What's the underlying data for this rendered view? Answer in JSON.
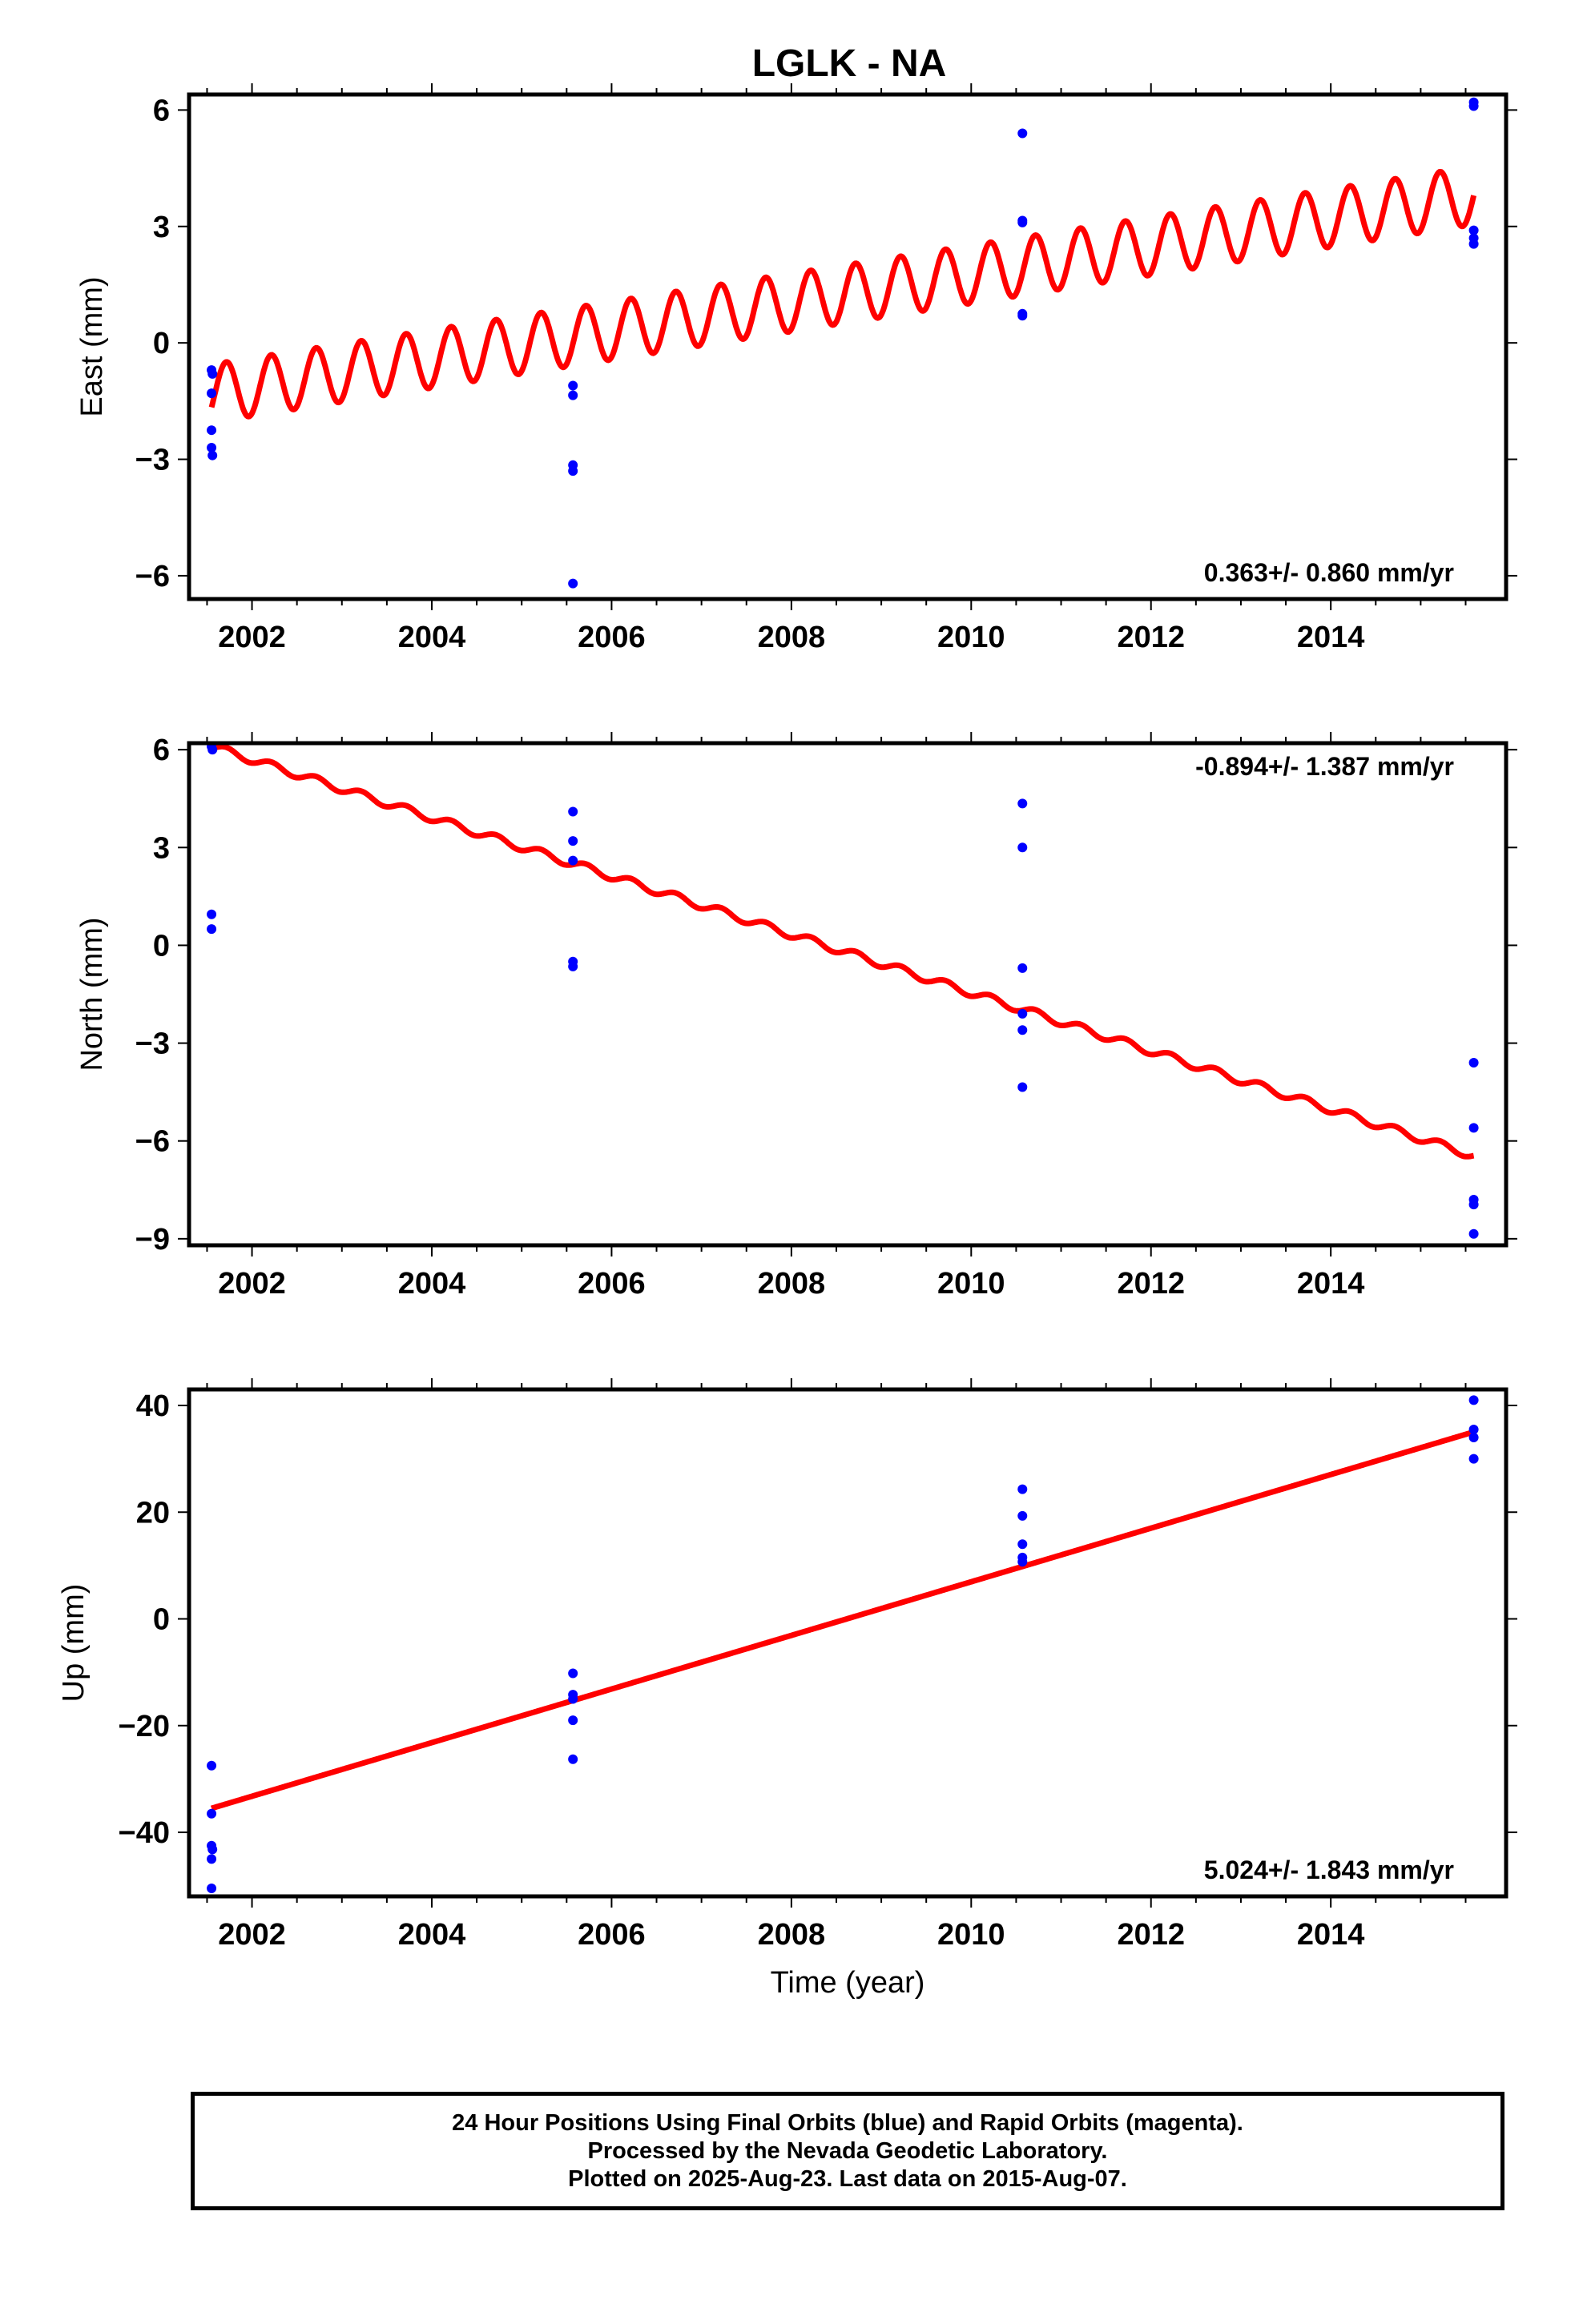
{
  "title": "LGLK - NA",
  "colors": {
    "fit": "#ff0000",
    "final": "#0000ff",
    "frame": "#000000"
  },
  "xaxis": {
    "label": "Time (year)",
    "range": [
      2001.3,
      2015.95
    ],
    "ticks": [
      2002,
      2004,
      2006,
      2008,
      2010,
      2012,
      2014
    ]
  },
  "chart_data": [
    {
      "type": "scatter",
      "name_panel": "east",
      "ylabel": "East (mm)",
      "ylim": [
        -6.6,
        6.4
      ],
      "yticks": [
        -6,
        -3,
        0,
        3,
        6
      ],
      "rate_label": "0.363+/- 0.860 mm/yr",
      "rate_position": "bottom-right",
      "fit": {
        "intercept_2001_55": -1.3,
        "slope": 0.363,
        "seasonal_amplitude": 0.75
      },
      "points": [
        {
          "x": 2001.55,
          "y": -0.7
        },
        {
          "x": 2001.56,
          "y": -0.8
        },
        {
          "x": 2001.55,
          "y": -1.3
        },
        {
          "x": 2001.55,
          "y": -2.25
        },
        {
          "x": 2001.55,
          "y": -2.7
        },
        {
          "x": 2001.56,
          "y": -2.9
        },
        {
          "x": 2005.57,
          "y": -1.1
        },
        {
          "x": 2005.57,
          "y": -1.35
        },
        {
          "x": 2005.57,
          "y": -3.15
        },
        {
          "x": 2005.57,
          "y": -3.3
        },
        {
          "x": 2005.57,
          "y": -6.2
        },
        {
          "x": 2010.57,
          "y": 5.4
        },
        {
          "x": 2010.57,
          "y": 3.15
        },
        {
          "x": 2010.57,
          "y": 3.1
        },
        {
          "x": 2010.57,
          "y": 0.75
        },
        {
          "x": 2010.57,
          "y": 0.7
        },
        {
          "x": 2015.59,
          "y": 6.2
        },
        {
          "x": 2015.59,
          "y": 6.1
        },
        {
          "x": 2015.59,
          "y": 2.9
        },
        {
          "x": 2015.59,
          "y": 2.7
        },
        {
          "x": 2015.59,
          "y": 2.55
        }
      ]
    },
    {
      "type": "scatter",
      "name_panel": "north",
      "ylabel": "North (mm)",
      "ylim": [
        -9.2,
        6.2
      ],
      "yticks": [
        -9,
        -6,
        -3,
        0,
        3,
        6
      ],
      "rate_label": "-0.894+/- 1.387 mm/yr",
      "rate_position": "top-right",
      "fit": {
        "intercept_2001_55": 6.1,
        "slope": -0.894,
        "seasonal_amplitude": 0.12
      },
      "points": [
        {
          "x": 2001.55,
          "y": 6.1
        },
        {
          "x": 2001.56,
          "y": 6.0
        },
        {
          "x": 2001.55,
          "y": 0.95
        },
        {
          "x": 2001.55,
          "y": 0.5
        },
        {
          "x": 2005.57,
          "y": 4.1
        },
        {
          "x": 2005.57,
          "y": 3.2
        },
        {
          "x": 2005.57,
          "y": 2.6
        },
        {
          "x": 2005.57,
          "y": -0.5
        },
        {
          "x": 2005.57,
          "y": -0.65
        },
        {
          "x": 2010.57,
          "y": 4.35
        },
        {
          "x": 2010.57,
          "y": 3.0
        },
        {
          "x": 2010.57,
          "y": -0.7
        },
        {
          "x": 2010.57,
          "y": -2.1
        },
        {
          "x": 2010.57,
          "y": -2.6
        },
        {
          "x": 2010.57,
          "y": -4.35
        },
        {
          "x": 2015.59,
          "y": -3.6
        },
        {
          "x": 2015.59,
          "y": -5.6
        },
        {
          "x": 2015.59,
          "y": -7.8
        },
        {
          "x": 2015.59,
          "y": -7.95
        },
        {
          "x": 2015.59,
          "y": -8.85
        }
      ]
    },
    {
      "type": "scatter",
      "name_panel": "up",
      "ylabel": "Up (mm)",
      "ylim": [
        -52,
        43
      ],
      "yticks": [
        -40,
        -20,
        0,
        20,
        40
      ],
      "rate_label": "5.024+/- 1.843 mm/yr",
      "rate_position": "bottom-right",
      "fit": {
        "intercept_2001_55": -35.5,
        "slope": 5.024,
        "seasonal_amplitude": 0
      },
      "points": [
        {
          "x": 2001.55,
          "y": -27.5
        },
        {
          "x": 2001.55,
          "y": -36.5
        },
        {
          "x": 2001.55,
          "y": -42.5
        },
        {
          "x": 2001.56,
          "y": -43.2
        },
        {
          "x": 2001.55,
          "y": -45.0
        },
        {
          "x": 2001.55,
          "y": -50.5
        },
        {
          "x": 2005.57,
          "y": -10.2
        },
        {
          "x": 2005.57,
          "y": -14.2
        },
        {
          "x": 2005.57,
          "y": -15.0
        },
        {
          "x": 2005.57,
          "y": -19.0
        },
        {
          "x": 2005.57,
          "y": -26.3
        },
        {
          "x": 2010.57,
          "y": 24.3
        },
        {
          "x": 2010.57,
          "y": 19.3
        },
        {
          "x": 2010.57,
          "y": 14.0
        },
        {
          "x": 2010.57,
          "y": 11.5
        },
        {
          "x": 2010.57,
          "y": 10.7
        },
        {
          "x": 2015.59,
          "y": 41.0
        },
        {
          "x": 2015.59,
          "y": 35.5
        },
        {
          "x": 2015.59,
          "y": 34.0
        },
        {
          "x": 2015.59,
          "y": 30.0
        }
      ]
    }
  ],
  "footer": {
    "line1": "24 Hour Positions Using Final Orbits (blue) and Rapid Orbits (magenta).",
    "line2": "Processed by the Nevada Geodetic Laboratory.",
    "line3": "Plotted on 2025-Aug-23. Last data on 2015-Aug-07."
  }
}
